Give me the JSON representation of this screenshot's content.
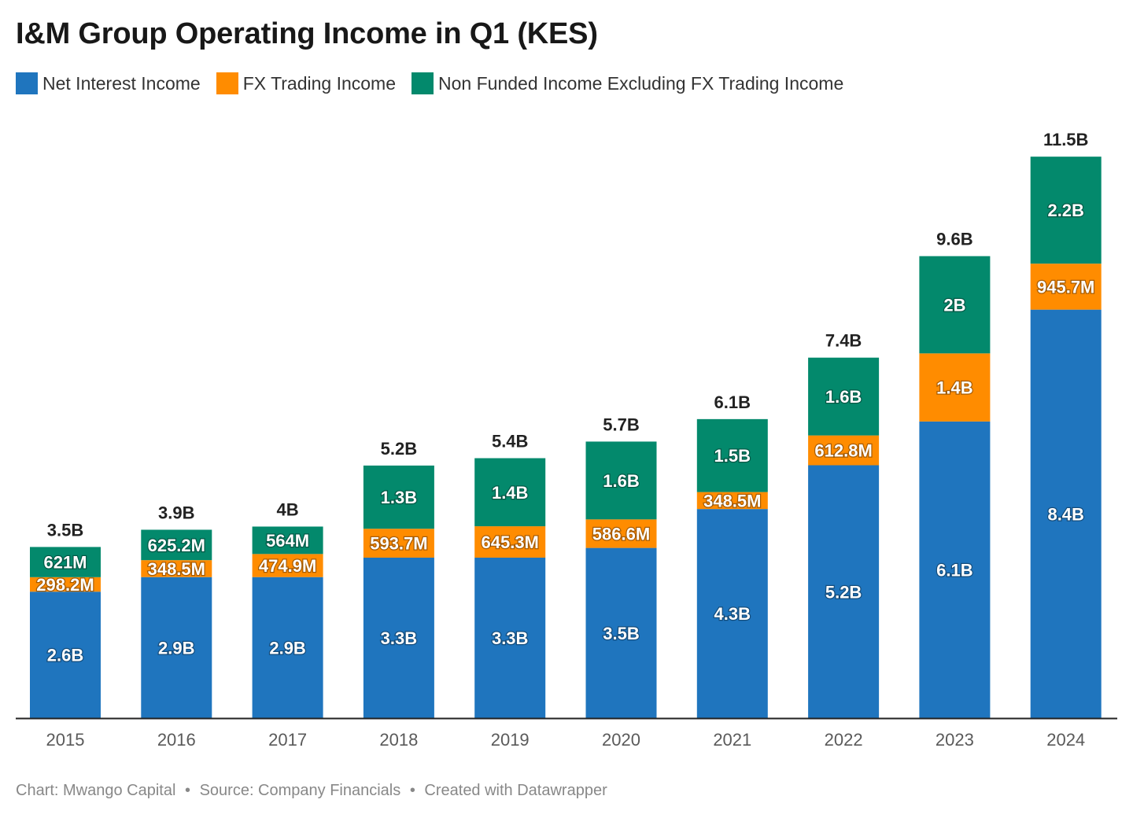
{
  "title": "I&M Group Operating Income in Q1 (KES)",
  "legend": [
    {
      "label": "Net Interest Income",
      "color": "#1f75be"
    },
    {
      "label": "FX Trading Income",
      "color": "#ff8c00"
    },
    {
      "label": "Non Funded Income Excluding FX Trading Income",
      "color": "#03896c"
    }
  ],
  "footer": {
    "chart": "Chart: Mwango Capital",
    "source": "Source: Company Financials",
    "created": "Created with Datawrapper",
    "separator": "•"
  },
  "chart_data": {
    "type": "bar",
    "stacked": true,
    "title": "I&M Group Operating Income in Q1 (KES)",
    "categories": [
      "2015",
      "2016",
      "2017",
      "2018",
      "2019",
      "2020",
      "2021",
      "2022",
      "2023",
      "2024"
    ],
    "series": [
      {
        "name": "Net Interest Income",
        "color": "#1f75be",
        "values": [
          2.6,
          2.9,
          2.9,
          3.3,
          3.3,
          3.5,
          4.3,
          5.2,
          6.1,
          8.4
        ],
        "labels": [
          "2.6B",
          "2.9B",
          "2.9B",
          "3.3B",
          "3.3B",
          "3.5B",
          "4.3B",
          "5.2B",
          "6.1B",
          "8.4B"
        ]
      },
      {
        "name": "FX Trading Income",
        "color": "#ff8c00",
        "values": [
          0.2982,
          0.3485,
          0.4749,
          0.5937,
          0.6453,
          0.5866,
          0.3485,
          0.6128,
          1.4,
          0.9457
        ],
        "labels": [
          "298.2M",
          "348.5M",
          "474.9M",
          "593.7M",
          "645.3M",
          "586.6M",
          "348.5M",
          "612.8M",
          "1.4B",
          "945.7M"
        ]
      },
      {
        "name": "Non Funded Income Excluding FX Trading Income",
        "color": "#03896c",
        "values": [
          0.621,
          0.6252,
          0.564,
          1.3,
          1.4,
          1.6,
          1.5,
          1.6,
          2.0,
          2.2
        ],
        "labels": [
          "621M",
          "625.2M",
          "564M",
          "1.3B",
          "1.4B",
          "1.6B",
          "1.5B",
          "1.6B",
          "2B",
          "2.2B"
        ]
      }
    ],
    "totals": {
      "values": [
        3.5,
        3.9,
        4.0,
        5.2,
        5.4,
        5.7,
        6.1,
        7.4,
        9.6,
        11.5
      ],
      "labels": [
        "3.5B",
        "3.9B",
        "4B",
        "5.2B",
        "5.4B",
        "5.7B",
        "6.1B",
        "7.4B",
        "9.6B",
        "11.5B"
      ]
    },
    "ylim": [
      0,
      11.5
    ],
    "grid": false,
    "legend_position": "top-left"
  }
}
